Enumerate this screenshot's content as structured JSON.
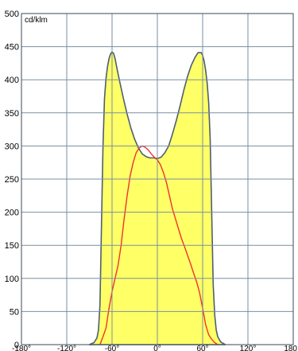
{
  "chart_data": {
    "type": "area",
    "unit_label": "cd/klm",
    "xlim": [
      -180,
      180
    ],
    "ylim": [
      0,
      500
    ],
    "x_ticks": [
      -180,
      -120,
      -60,
      0,
      60,
      120,
      180
    ],
    "x_tick_labels": [
      "-180°",
      "-120°",
      "-60°",
      "0°",
      "60°",
      "120°",
      "180"
    ],
    "y_ticks": [
      0,
      50,
      100,
      150,
      200,
      250,
      300,
      350,
      400,
      450,
      500
    ],
    "y_tick_labels": [
      "0",
      "50",
      "100",
      "150",
      "200",
      "250",
      "300",
      "350",
      "400",
      "450",
      "500"
    ],
    "grid": true,
    "colors": {
      "area_fill": "#ffff66",
      "area_stroke": "#4d5f70",
      "line": "#ee3333",
      "grid": "#7a8fa3",
      "frame": "#3a4a5a"
    },
    "series": [
      {
        "type": "area",
        "points": [
          [
            -90,
            0
          ],
          [
            -84,
            3
          ],
          [
            -80,
            10
          ],
          [
            -78,
            22
          ],
          [
            -76,
            60
          ],
          [
            -74,
            180
          ],
          [
            -72,
            300
          ],
          [
            -70,
            372
          ],
          [
            -68,
            402
          ],
          [
            -66,
            420
          ],
          [
            -64,
            432
          ],
          [
            -62,
            439
          ],
          [
            -60,
            442
          ],
          [
            -58,
            440
          ],
          [
            -56,
            432
          ],
          [
            -54,
            420
          ],
          [
            -50,
            398
          ],
          [
            -45,
            372
          ],
          [
            -40,
            348
          ],
          [
            -35,
            327
          ],
          [
            -30,
            310
          ],
          [
            -25,
            297
          ],
          [
            -20,
            288
          ],
          [
            -15,
            284
          ],
          [
            -10,
            282
          ],
          [
            -5,
            282
          ],
          [
            0,
            281
          ],
          [
            5,
            283
          ],
          [
            10,
            290
          ],
          [
            15,
            300
          ],
          [
            20,
            318
          ],
          [
            25,
            338
          ],
          [
            30,
            360
          ],
          [
            35,
            384
          ],
          [
            40,
            405
          ],
          [
            45,
            422
          ],
          [
            50,
            434
          ],
          [
            54,
            441
          ],
          [
            58,
            441
          ],
          [
            60,
            437
          ],
          [
            62,
            428
          ],
          [
            64,
            414
          ],
          [
            66,
            395
          ],
          [
            68,
            365
          ],
          [
            70,
            310
          ],
          [
            72,
            200
          ],
          [
            74,
            90
          ],
          [
            76,
            45
          ],
          [
            78,
            22
          ],
          [
            80,
            12
          ],
          [
            84,
            4
          ],
          [
            90,
            0
          ]
        ]
      },
      {
        "type": "line",
        "points": [
          [
            -76,
            0
          ],
          [
            -72,
            12
          ],
          [
            -68,
            25
          ],
          [
            -64,
            55
          ],
          [
            -60,
            80
          ],
          [
            -56,
            100
          ],
          [
            -52,
            120
          ],
          [
            -48,
            150
          ],
          [
            -44,
            190
          ],
          [
            -40,
            225
          ],
          [
            -36,
            255
          ],
          [
            -32,
            275
          ],
          [
            -28,
            290
          ],
          [
            -24,
            297
          ],
          [
            -20,
            300
          ],
          [
            -16,
            298
          ],
          [
            -12,
            294
          ],
          [
            -8,
            288
          ],
          [
            -4,
            283
          ],
          [
            0,
            279
          ],
          [
            4,
            272
          ],
          [
            8,
            260
          ],
          [
            12,
            245
          ],
          [
            16,
            225
          ],
          [
            20,
            205
          ],
          [
            24,
            190
          ],
          [
            28,
            175
          ],
          [
            32,
            160
          ],
          [
            36,
            148
          ],
          [
            40,
            135
          ],
          [
            44,
            122
          ],
          [
            48,
            108
          ],
          [
            52,
            95
          ],
          [
            56,
            78
          ],
          [
            60,
            55
          ],
          [
            64,
            30
          ],
          [
            68,
            15
          ],
          [
            72,
            8
          ],
          [
            76,
            3
          ],
          [
            80,
            0
          ]
        ]
      }
    ]
  }
}
